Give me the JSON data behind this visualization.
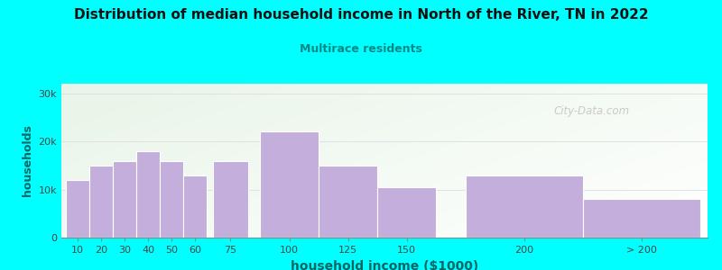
{
  "title": "Distribution of median household income in North of the River, TN in 2022",
  "subtitle": "Multirace residents",
  "xlabel": "household income ($1000)",
  "ylabel": "households",
  "bar_labels": [
    "10",
    "20",
    "30",
    "40",
    "50",
    "60",
    "75",
    "100",
    "125",
    "150",
    "200",
    "> 200"
  ],
  "bar_values": [
    12000,
    15000,
    16000,
    18000,
    16000,
    13000,
    16000,
    22000,
    15000,
    10500,
    13000,
    8000
  ],
  "bar_color": "#C4AEDB",
  "bar_edgecolor": "#ffffff",
  "background_color": "#00FFFF",
  "title_color": "#111111",
  "subtitle_color": "#008888",
  "axis_label_color": "#006666",
  "tick_color": "#444444",
  "yticks": [
    0,
    10000,
    20000,
    30000
  ],
  "ytick_labels": [
    "0",
    "10k",
    "20k",
    "30k"
  ],
  "ylim": [
    0,
    32000
  ],
  "xlim_min": 3,
  "xlim_max": 278,
  "watermark": "City-Data.com",
  "x_centers": [
    10,
    20,
    30,
    40,
    50,
    60,
    75,
    100,
    125,
    150,
    200,
    250
  ],
  "widths": [
    10,
    10,
    10,
    10,
    10,
    10,
    15,
    25,
    25,
    25,
    50,
    50
  ]
}
